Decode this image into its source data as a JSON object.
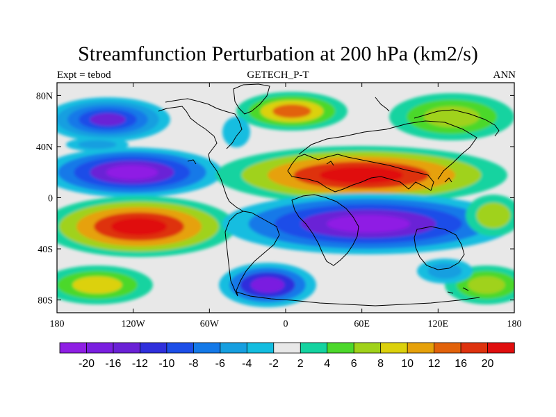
{
  "title": "Streamfunction Perturbation at 200 hPa (km2/s)",
  "left_label": "Expt = tebod",
  "center_label": "GETECH_P-T",
  "right_label": "ANN",
  "map": {
    "projection": "cylindrical-equidistant",
    "lon_range": [
      -180,
      180
    ],
    "lat_range": [
      -90,
      90
    ],
    "lon_ticks": [
      "180",
      "120W",
      "60W",
      "0",
      "60E",
      "120E",
      "180"
    ],
    "lat_ticks": [
      "80N",
      "40N",
      "0",
      "40S",
      "80S"
    ],
    "coastlines": true
  },
  "colorbar": {
    "labels": [
      "-20",
      "-16",
      "-12",
      "-10",
      "-8",
      "-6",
      "-4",
      "-2",
      "2",
      "4",
      "6",
      "8",
      "10",
      "12",
      "16",
      "20"
    ],
    "colors": [
      "#8f1fe4",
      "#7a1fe0",
      "#6a21d6",
      "#2f2fdc",
      "#1c4ee8",
      "#1479e8",
      "#169fe0",
      "#13bde0",
      "#e8e8e8",
      "#14d3a0",
      "#4cd82c",
      "#a0d21a",
      "#dcd10c",
      "#e6a10a",
      "#e2620a",
      "#de320e",
      "#e00e0e"
    ]
  }
}
